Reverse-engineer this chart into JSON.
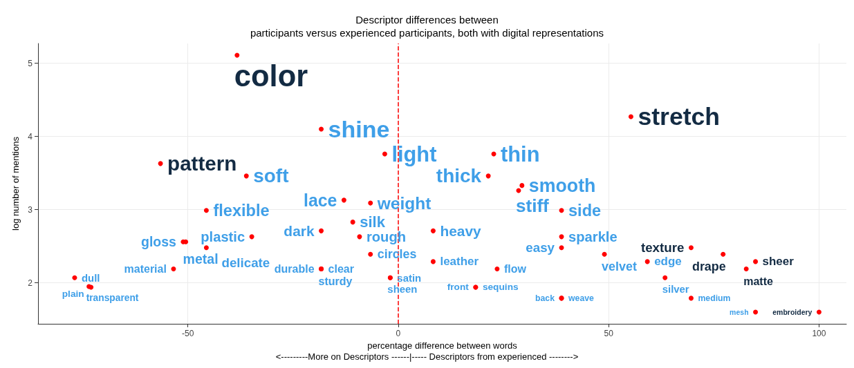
{
  "chart_data": {
    "type": "scatter",
    "title": "Descriptor differences between",
    "subtitle": "participants versus experienced participants, both with digital representations",
    "xlabel": "percentage difference between words",
    "ylabel": "log number of mentions",
    "annotations": [
      "<---------More on Descriptors ------|----- Descriptors from experienced -------->"
    ],
    "xlim": [
      -85.6,
      106.5
    ],
    "ylim": [
      1.44,
      5.27
    ],
    "xticks": [
      -50,
      0,
      50,
      100
    ],
    "yticks": [
      2,
      3,
      4,
      5
    ],
    "grid": true,
    "marker": "circle",
    "ref_lines": [
      {
        "axis": "x",
        "value": 0,
        "color": "#ff0000",
        "line_style": "dashed"
      }
    ],
    "series": [
      {
        "color": "#ff0000",
        "x": [
          -38.3,
          55.3,
          -56.5,
          69.6,
          77.2,
          84.9,
          82.7,
          100
        ],
        "values": [
          5.11,
          4.27,
          3.63,
          2.48,
          2.39,
          2.29,
          2.19,
          1.6
        ],
        "value_labels": [
          "color",
          "stretch",
          "pattern",
          "texture",
          "drape",
          "sheer",
          "matte",
          "embroidery"
        ]
      },
      {
        "color": "#ff0000",
        "x": [
          -18.3,
          -3.2,
          22.7,
          -36.1,
          21.4,
          29.4,
          28.6,
          -12.9,
          -6.6,
          -45.6,
          38.8,
          -10.8,
          -18.3,
          8.3,
          -34.8,
          -9.2,
          38.8,
          -51.1,
          -50.5,
          -45.6,
          38.8,
          49.0,
          -6.6,
          8.3,
          -18.3,
          -18.3,
          -18.3,
          -53.4,
          -76.9,
          -73.5,
          -73.0,
          -1.9,
          -1.9,
          18.4,
          18.4,
          23.5,
          59.2,
          63.4,
          38.8,
          38.8,
          69.6,
          84.9
        ],
        "values": [
          4.1,
          3.76,
          3.76,
          3.46,
          3.46,
          3.33,
          3.26,
          3.13,
          3.09,
          2.99,
          2.99,
          2.83,
          2.71,
          2.71,
          2.63,
          2.63,
          2.63,
          2.56,
          2.56,
          2.48,
          2.48,
          2.39,
          2.39,
          2.29,
          2.19,
          2.19,
          2.19,
          2.19,
          2.07,
          1.95,
          1.94,
          2.07,
          2.07,
          1.94,
          1.94,
          2.19,
          2.29,
          2.07,
          1.79,
          1.79,
          1.79,
          1.6
        ],
        "value_labels": [
          "shine",
          "light",
          "thin",
          "soft",
          "thick",
          "smooth",
          "stiff",
          "lace",
          "weight",
          "flexible",
          "side",
          "silk",
          "dark",
          "heavy",
          "plastic",
          "rough",
          "sparkle",
          "gloss",
          "metal",
          "delicate",
          "easy",
          "velvet",
          "circles",
          "leather",
          "clear",
          "durable",
          "sturdy",
          "material",
          "dull",
          "transparent",
          "plain",
          "satin",
          "sheen",
          "sequins",
          "front",
          "flow",
          "edge",
          "silver",
          "weave",
          "back",
          "medium",
          "mesh"
        ]
      }
    ]
  }
}
